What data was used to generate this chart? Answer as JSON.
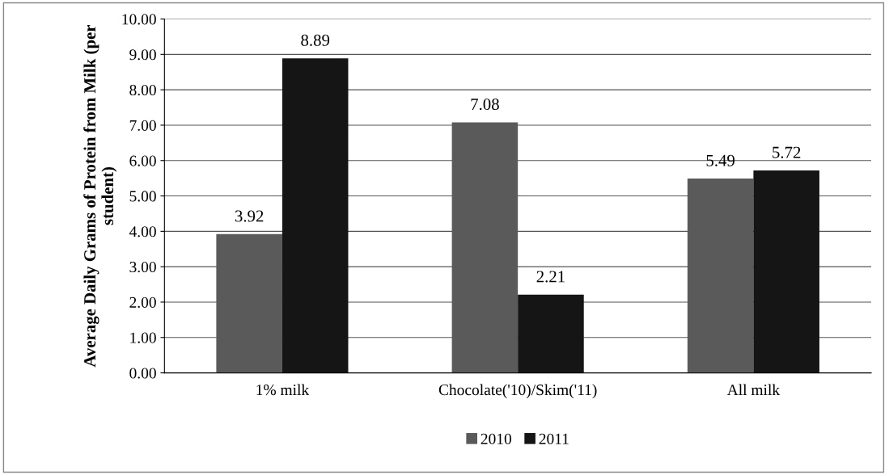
{
  "chart_data": {
    "type": "bar",
    "ylabel": "Average Daily Grams of Protein from Milk (per student)",
    "categories": [
      "1% milk",
      "Chocolate('10)/Skim('11)",
      "All milk"
    ],
    "series": [
      {
        "name": "2010",
        "color": "#5a5a5a",
        "values": [
          3.92,
          7.08,
          5.49
        ]
      },
      {
        "name": "2011",
        "color": "#151515",
        "values": [
          8.89,
          2.21,
          5.72
        ]
      }
    ],
    "ylim": [
      0,
      10
    ],
    "yticks": [
      {
        "value": 0,
        "label": "0.00"
      },
      {
        "value": 1,
        "label": "1.00"
      },
      {
        "value": 2,
        "label": "2.00"
      },
      {
        "value": 3,
        "label": "3.00"
      },
      {
        "value": 4,
        "label": "4.00"
      },
      {
        "value": 5,
        "label": "5.00"
      },
      {
        "value": 6,
        "label": "6.00"
      },
      {
        "value": 7,
        "label": "7.00"
      },
      {
        "value": 8,
        "label": "8.00"
      },
      {
        "value": 9,
        "label": "9.00"
      },
      {
        "value": 10,
        "label": "10.00"
      }
    ],
    "grid": "y",
    "legend": "bottom",
    "data_labels": true
  }
}
